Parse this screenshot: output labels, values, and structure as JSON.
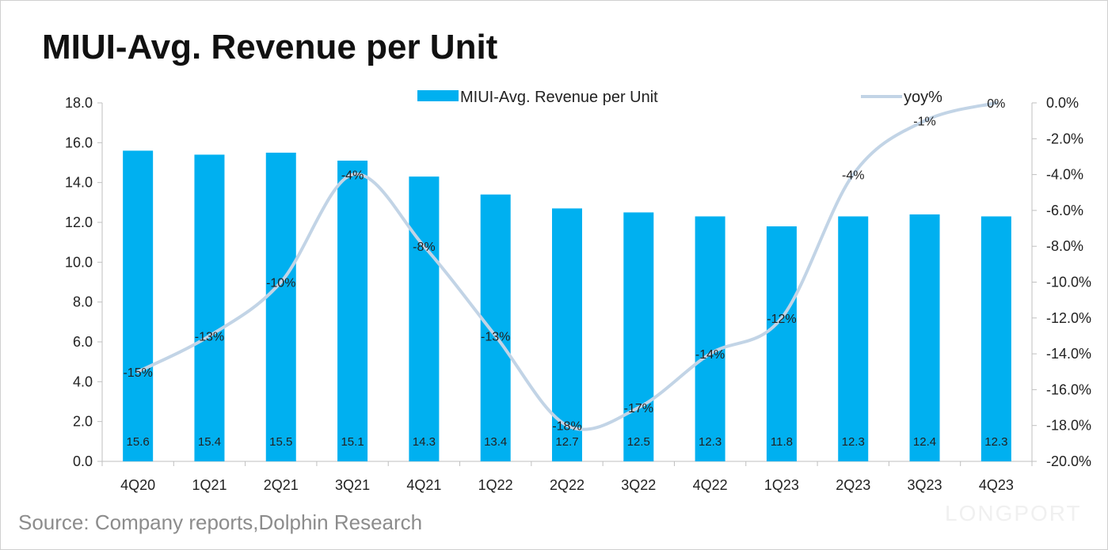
{
  "title": "MIUI-Avg. Revenue per Unit",
  "source": "Source: Company reports,Dolphin Research",
  "watermark": "LONGPORT",
  "colors": {
    "bar": "#00b0f0",
    "line": "#c2d4e6",
    "axis": "#bfbfbf"
  },
  "chart_data": {
    "type": "bar",
    "title": "MIUI-Avg. Revenue per Unit",
    "categories": [
      "4Q20",
      "1Q21",
      "2Q21",
      "3Q21",
      "4Q21",
      "1Q22",
      "2Q22",
      "3Q22",
      "4Q22",
      "1Q23",
      "2Q23",
      "3Q23",
      "4Q23"
    ],
    "series": [
      {
        "name": "MIUI-Avg. Revenue per Unit",
        "type": "bar",
        "axis": "left",
        "values": [
          15.6,
          15.4,
          15.5,
          15.1,
          14.3,
          13.4,
          12.7,
          12.5,
          12.3,
          11.8,
          12.3,
          12.4,
          12.3
        ],
        "labels": [
          "15.6",
          "15.4",
          "15.5",
          "15.1",
          "14.3",
          "13.4",
          "12.7",
          "12.5",
          "12.3",
          "11.8",
          "12.3",
          "12.4",
          "12.3"
        ]
      },
      {
        "name": "yoy%",
        "type": "line",
        "smooth": true,
        "axis": "right",
        "values": [
          -15,
          -13,
          -10,
          -4,
          -8,
          -13,
          -18,
          -17,
          -14,
          -12,
          -4,
          -1,
          0
        ],
        "labels": [
          "-15%",
          "-13%",
          "-10%",
          "-4%",
          "-8%",
          "-13%",
          "-18%",
          "-17%",
          "-14%",
          "-12%",
          "-4%",
          "-1%",
          "0%"
        ]
      }
    ],
    "y_left": {
      "min": 0,
      "max": 18,
      "ticks": [
        "0.0",
        "2.0",
        "4.0",
        "6.0",
        "8.0",
        "10.0",
        "12.0",
        "14.0",
        "16.0",
        "18.0"
      ]
    },
    "y_right": {
      "min": -20,
      "max": 0,
      "ticks": [
        "-20.0%",
        "-18.0%",
        "-16.0%",
        "-14.0%",
        "-12.0%",
        "-10.0%",
        "-8.0%",
        "-6.0%",
        "-4.0%",
        "-2.0%",
        "0.0%"
      ]
    },
    "legend": "top",
    "grid": false
  }
}
